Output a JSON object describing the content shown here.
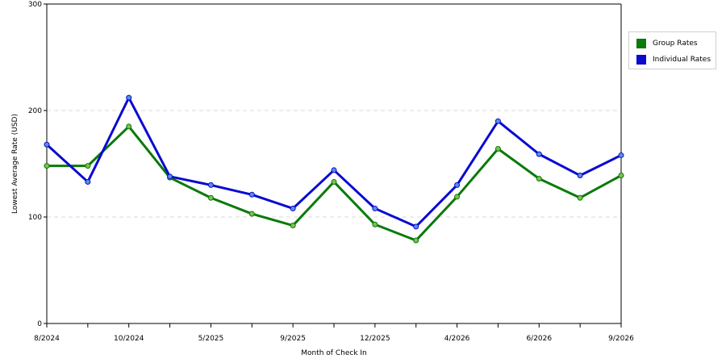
{
  "chart_data": {
    "type": "line",
    "xlabel": "Month of Check In",
    "ylabel": "Lowest Average Rate (USD)",
    "ylim": [
      0,
      300
    ],
    "y_ticks": [
      "0",
      "100",
      "200",
      "300"
    ],
    "x_tick_labels": [
      "8/2024",
      "10/2024",
      "5/2025",
      "9/2025",
      "12/2025",
      "4/2026",
      "6/2026",
      "9/2026"
    ],
    "grid": "horizontal-dashed",
    "legend_position": "top-right",
    "series": [
      {
        "name": "Group Rates",
        "color": "#0a7a0a",
        "marker_color": "#7fbf4f",
        "values": [
          148,
          148,
          185,
          137,
          118,
          103,
          92,
          133,
          93,
          78,
          119,
          164,
          136,
          118,
          139
        ]
      },
      {
        "name": "Individual Rates",
        "color": "#0a0ad0",
        "marker_color": "#5a8fe0",
        "values": [
          168,
          133,
          212,
          138,
          130,
          121,
          108,
          144,
          108,
          91,
          130,
          190,
          159,
          139,
          158
        ]
      }
    ]
  }
}
